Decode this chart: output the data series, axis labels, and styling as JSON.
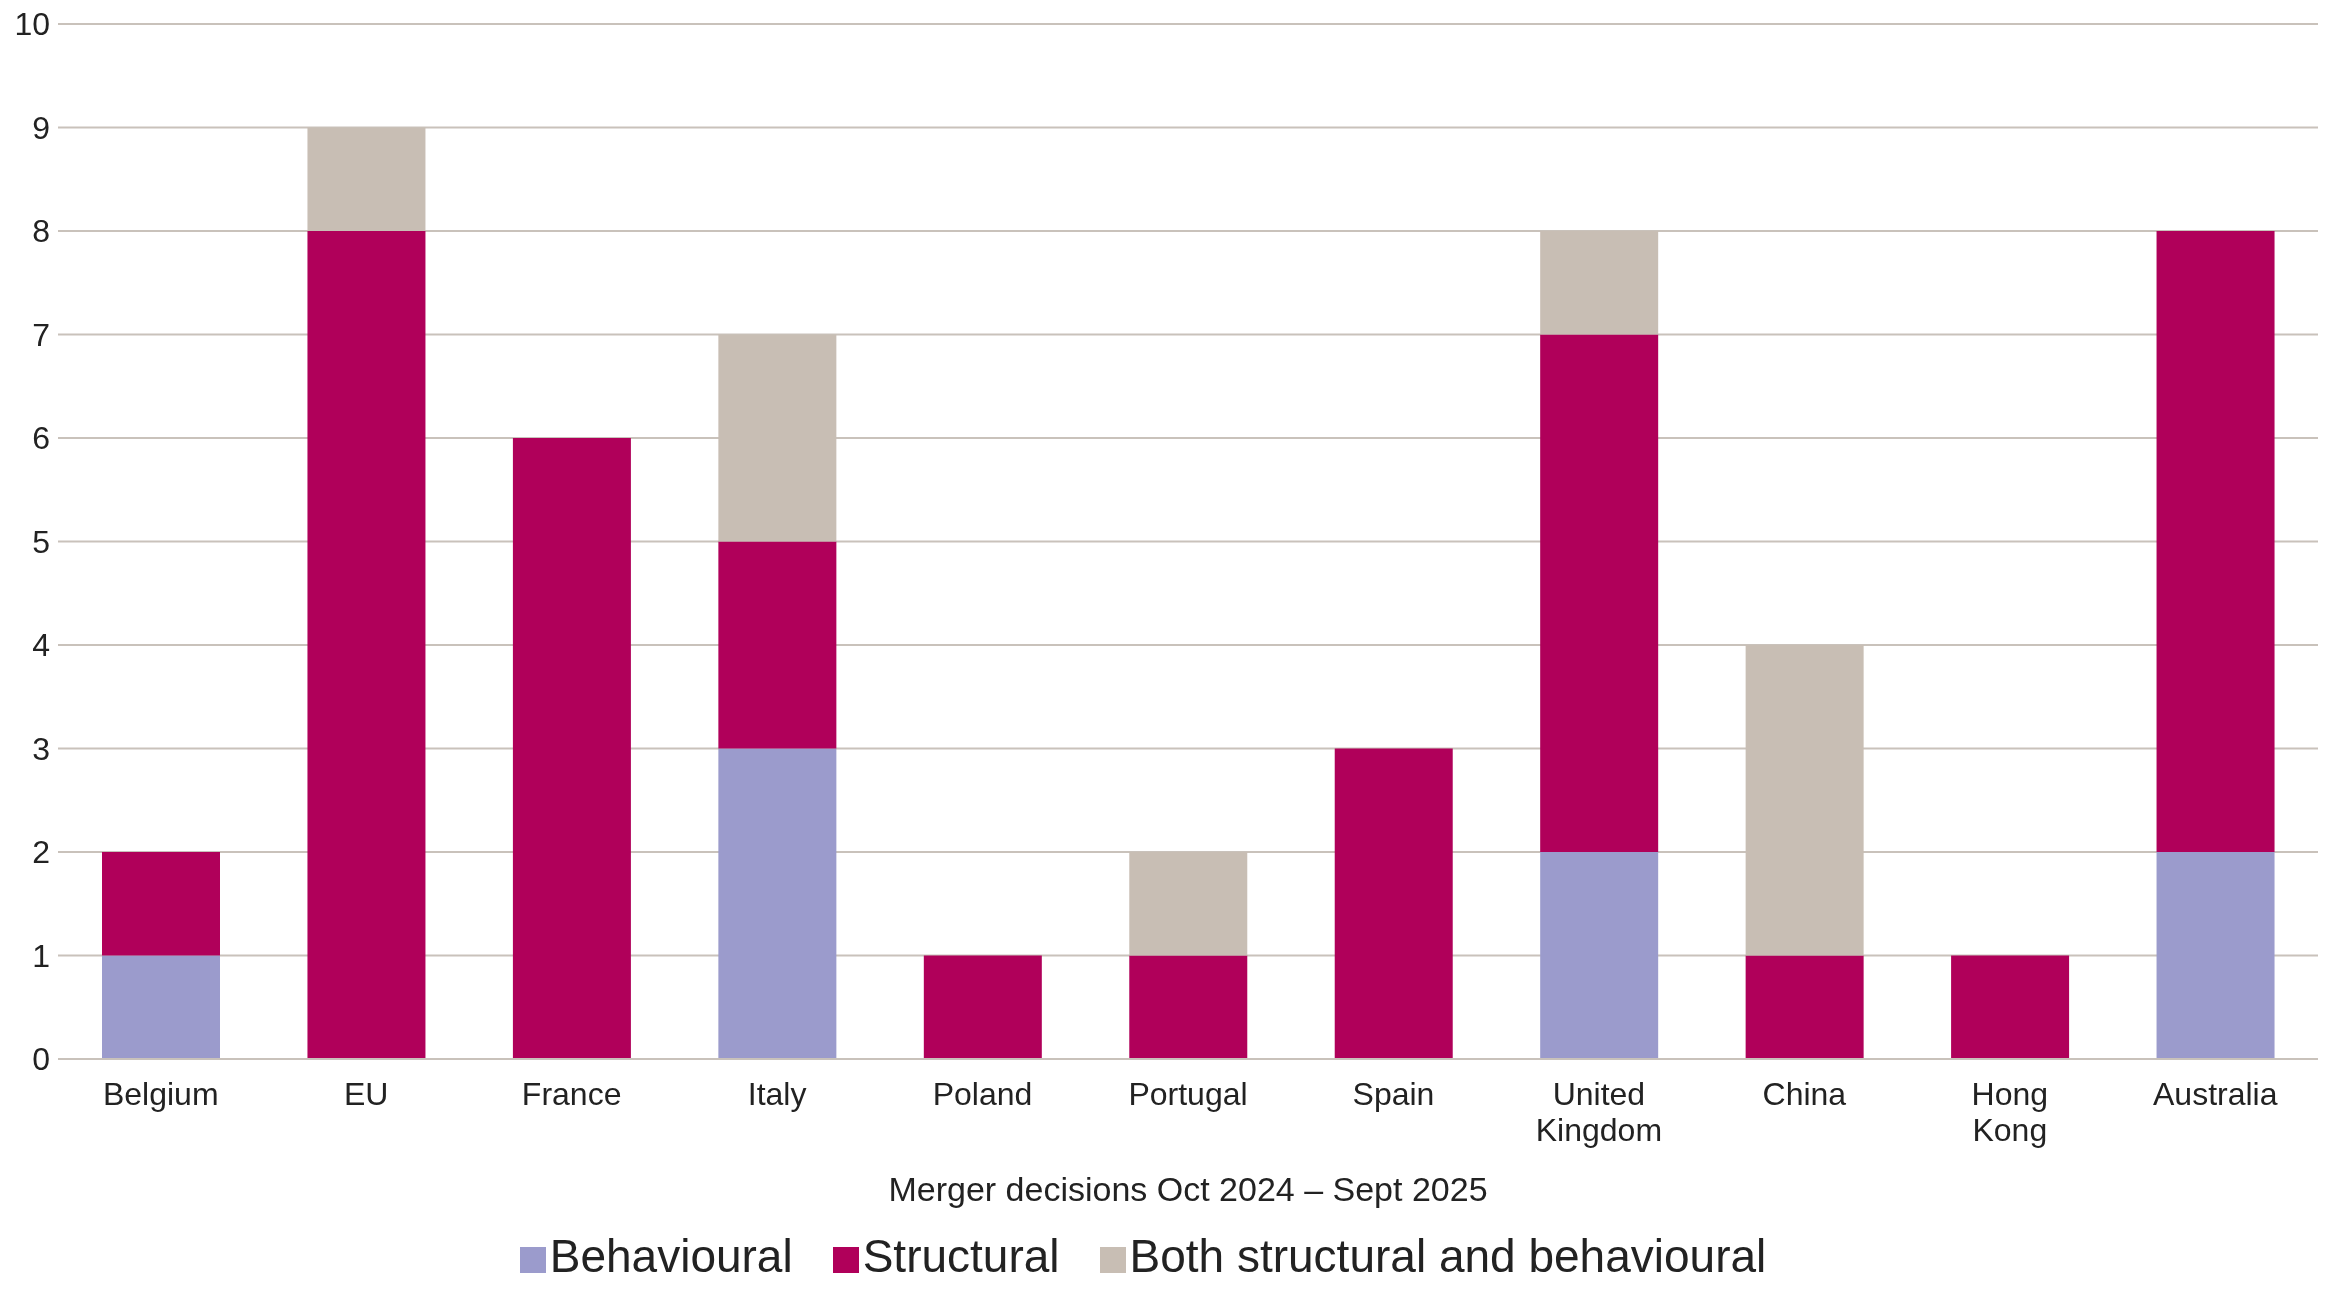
{
  "chart_data": {
    "type": "bar",
    "stacked": true,
    "xlabel": "Merger decisions Oct 2024 – Sept 2025",
    "categories": [
      "Belgium",
      "EU",
      "France",
      "Italy",
      "Poland",
      "Portugal",
      "Spain",
      "United Kingdom",
      "China",
      "Hong Kong",
      "Australia"
    ],
    "series": [
      {
        "name": "Behavioural",
        "color": "#9b9bcc",
        "values": [
          1,
          0,
          0,
          3,
          0,
          0,
          0,
          2,
          0,
          0,
          2
        ]
      },
      {
        "name": "Structural",
        "color": "#b0005a",
        "values": [
          1,
          8,
          6,
          2,
          1,
          1,
          3,
          5,
          1,
          1,
          6
        ]
      },
      {
        "name": "Both structural and behavioural",
        "color": "#c8beb4",
        "values": [
          0,
          1,
          0,
          2,
          0,
          1,
          0,
          1,
          3,
          0,
          0
        ]
      }
    ],
    "ylim": [
      0,
      10
    ],
    "yticks": [
      0,
      1,
      2,
      3,
      4,
      5,
      6,
      7,
      8,
      9,
      10
    ],
    "grid": "y",
    "legend": "bottom"
  }
}
